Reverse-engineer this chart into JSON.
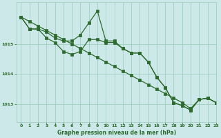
{
  "bg_color": "#cce8e8",
  "grid_color": "#99ccbb",
  "line_color": "#2d6a2d",
  "title": "Graphe pression niveau de la mer (hPa)",
  "xlim": [
    -0.5,
    23
  ],
  "ylim": [
    1012.4,
    1016.4
  ],
  "yticks": [
    1013,
    1014,
    1015
  ],
  "xticks": [
    0,
    1,
    2,
    3,
    4,
    5,
    6,
    7,
    8,
    9,
    10,
    11,
    12,
    13,
    14,
    15,
    16,
    17,
    18,
    19,
    20,
    21,
    22,
    23
  ],
  "s1": [
    1015.9,
    1015.5,
    1015.5,
    1015.4,
    1015.2,
    1015.1,
    1015.1,
    1015.3,
    1015.7,
    1016.1,
    1015.1,
    1015.1,
    1014.85,
    1014.7,
    1014.7,
    1014.4,
    1013.9,
    1013.55,
    1013.05,
    1012.95,
    1012.8,
    1013.15,
    1013.2,
    1013.05
  ],
  "s2": [
    1015.9,
    1015.5,
    1015.5,
    1015.2,
    1015.05,
    1014.75,
    1014.65,
    1014.75,
    1015.15,
    1015.15,
    1015.05,
    1015.05,
    1014.85,
    1014.7,
    1014.7,
    1014.4,
    1013.9,
    1013.55,
    1013.05,
    1012.95,
    1012.8,
    1013.15,
    1013.2,
    1013.05
  ],
  "s3": [
    1015.9,
    1015.75,
    1015.6,
    1015.45,
    1015.3,
    1015.15,
    1015.0,
    1014.85,
    1014.7,
    1014.55,
    1014.4,
    1014.25,
    1014.1,
    1013.95,
    1013.8,
    1013.65,
    1013.5,
    1013.35,
    1013.2,
    1013.05,
    1012.85,
    1013.15,
    1013.2,
    1013.05
  ]
}
